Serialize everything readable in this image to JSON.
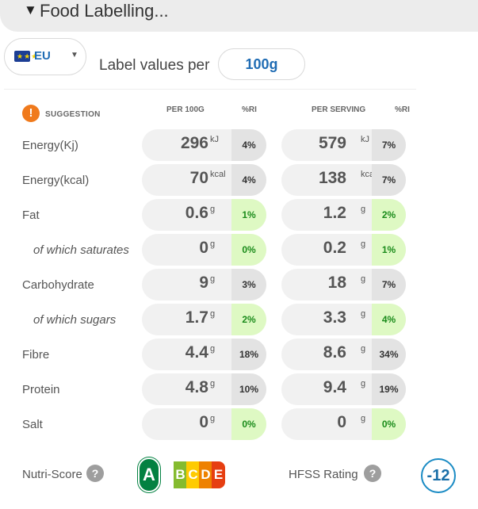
{
  "header": {
    "toggle_icon": "caret-down-icon",
    "title": "Food Labelling..."
  },
  "region": {
    "flag_icon": "eu-flag-icon",
    "label": "EU",
    "caret_icon": "chevron-down-icon"
  },
  "label_values": {
    "text": "Label values per",
    "amount": "100g"
  },
  "table": {
    "suggestion": {
      "icon": "!",
      "label": "SUGGESTION"
    },
    "headers": {
      "per100": "PER 100G",
      "ri1": "%RI",
      "per_serving": "PER SERVING",
      "ri2": "%RI"
    },
    "rows": [
      {
        "name": "Energy(Kj)",
        "sub": false,
        "v100": "296",
        "u100": "kJ",
        "ri100": "4%",
        "c100": "grey",
        "vserv": "579",
        "userv": "kJ",
        "riserv": "7%",
        "cserv": "grey"
      },
      {
        "name": "Energy(kcal)",
        "sub": false,
        "v100": "70",
        "u100": "kcal",
        "ri100": "4%",
        "c100": "grey",
        "vserv": "138",
        "userv": "kcal",
        "riserv": "7%",
        "cserv": "grey"
      },
      {
        "name": "Fat",
        "sub": false,
        "v100": "0.6",
        "u100": "g",
        "ri100": "1%",
        "c100": "green",
        "vserv": "1.2",
        "userv": "g",
        "riserv": "2%",
        "cserv": "green"
      },
      {
        "name": "of which saturates",
        "sub": true,
        "v100": "0",
        "u100": "g",
        "ri100": "0%",
        "c100": "green",
        "vserv": "0.2",
        "userv": "g",
        "riserv": "1%",
        "cserv": "green"
      },
      {
        "name": "Carbohydrate",
        "sub": false,
        "v100": "9",
        "u100": "g",
        "ri100": "3%",
        "c100": "grey",
        "vserv": "18",
        "userv": "g",
        "riserv": "7%",
        "cserv": "grey"
      },
      {
        "name": "of which sugars",
        "sub": true,
        "v100": "1.7",
        "u100": "g",
        "ri100": "2%",
        "c100": "green",
        "vserv": "3.3",
        "userv": "g",
        "riserv": "4%",
        "cserv": "green"
      },
      {
        "name": "Fibre",
        "sub": false,
        "v100": "4.4",
        "u100": "g",
        "ri100": "18%",
        "c100": "grey",
        "vserv": "8.6",
        "userv": "g",
        "riserv": "34%",
        "cserv": "grey"
      },
      {
        "name": "Protein",
        "sub": false,
        "v100": "4.8",
        "u100": "g",
        "ri100": "10%",
        "c100": "grey",
        "vserv": "9.4",
        "userv": "g",
        "riserv": "19%",
        "cserv": "grey"
      },
      {
        "name": "Salt",
        "sub": false,
        "v100": "0",
        "u100": "g",
        "ri100": "0%",
        "c100": "green",
        "vserv": "0",
        "userv": "g",
        "riserv": "0%",
        "cserv": "green"
      }
    ]
  },
  "footer": {
    "nutri_label": "Nutri-Score",
    "help_icon": "?",
    "nutri_grades": [
      "A",
      "B",
      "C",
      "D",
      "E"
    ],
    "nutri_active": "A",
    "nutri_colors": [
      "#038141",
      "#85bb2f",
      "#fecb02",
      "#ee8100",
      "#e63e11"
    ],
    "hfss_label": "HFSS Rating",
    "hfss_value": "-12"
  },
  "colors": {
    "accent": "#1f6cb4",
    "ri_green_bg": "#def9c3",
    "ri_green_text": "#1a8b1a",
    "ri_grey_bg": "#e3e3e3"
  }
}
